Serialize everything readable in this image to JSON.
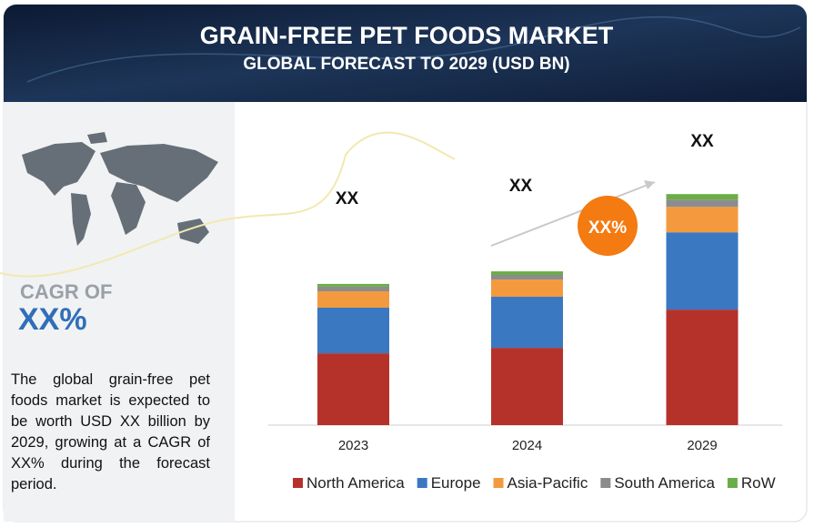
{
  "header": {
    "title": "GRAIN-FREE PET FOODS MARKET",
    "subtitle": "GLOBAL FORECAST TO 2029 (USD BN)"
  },
  "sidebar": {
    "cagr_label": "CAGR OF",
    "cagr_value": "XX%",
    "description": "The global grain-free pet foods market is expected to be worth USD XX billion by 2029, growing at a CAGR of XX% during the forecast period."
  },
  "chart_data": {
    "type": "stacked_bar",
    "categories": [
      "2023",
      "2024",
      "2029"
    ],
    "series": [
      {
        "name": "North America",
        "color": "#b5322b",
        "values": [
          26.3,
          28.3,
          42.3
        ]
      },
      {
        "name": "Europe",
        "color": "#3a78c2",
        "values": [
          16.7,
          18.7,
          28.3
        ]
      },
      {
        "name": "Asia-Pacific",
        "color": "#f39a3e",
        "values": [
          6,
          6.3,
          9.3
        ]
      },
      {
        "name": "South America",
        "color": "#8c8c8c",
        "values": [
          1.7,
          1.7,
          2.7
        ]
      },
      {
        "name": "RoW",
        "color": "#6aae45",
        "values": [
          1,
          1.3,
          2
        ]
      }
    ],
    "total_labels": [
      "XX",
      "XX",
      "XX"
    ],
    "growth_label": "XX%",
    "ylim": [
      0,
      100
    ]
  }
}
